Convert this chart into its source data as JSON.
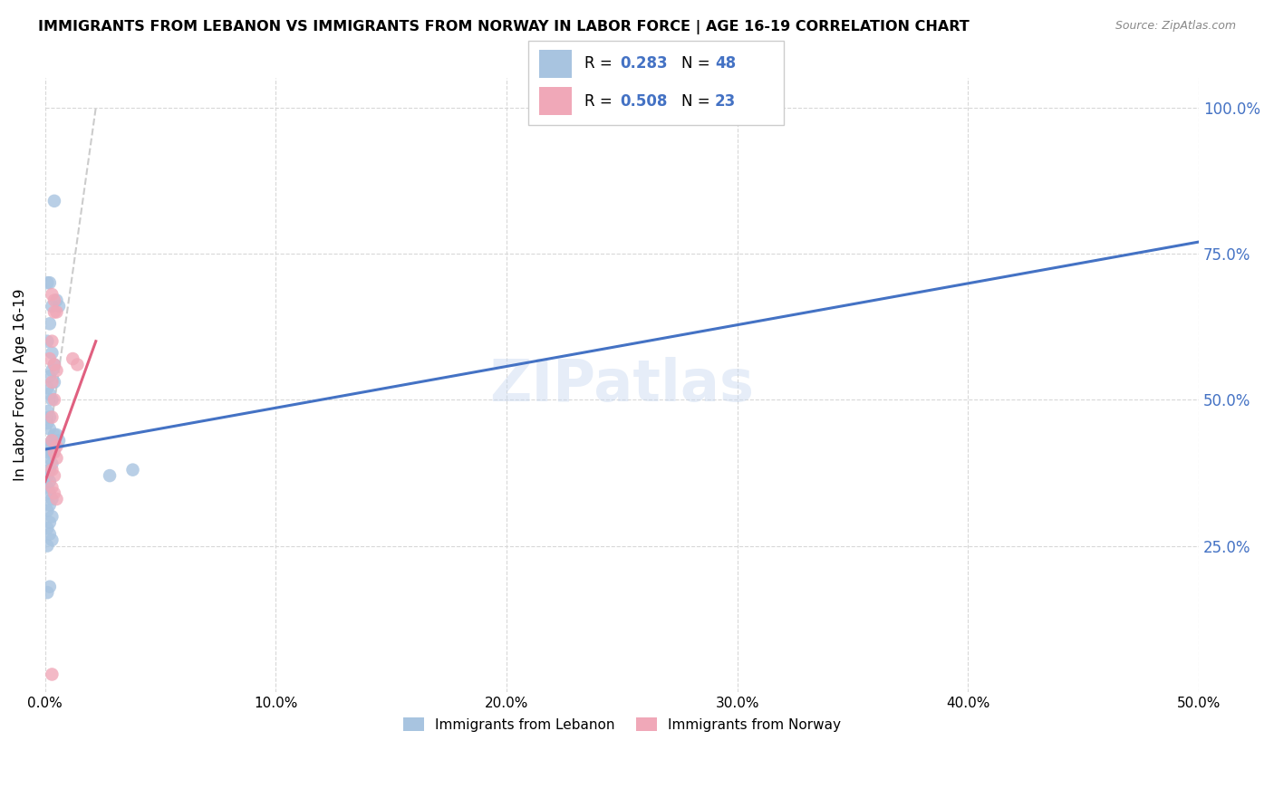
{
  "title": "IMMIGRANTS FROM LEBANON VS IMMIGRANTS FROM NORWAY IN LABOR FORCE | AGE 16-19 CORRELATION CHART",
  "source": "Source: ZipAtlas.com",
  "ylabel": "In Labor Force | Age 16-19",
  "xlim": [
    0.0,
    0.5
  ],
  "ylim": [
    0.0,
    1.05
  ],
  "xtick_vals": [
    0.0,
    0.1,
    0.2,
    0.3,
    0.4,
    0.5
  ],
  "ytick_vals": [
    0.25,
    0.5,
    0.75,
    1.0
  ],
  "legend_labels": [
    "Immigrants from Lebanon",
    "Immigrants from Norway"
  ],
  "lebanon_color": "#a8c4e0",
  "norway_color": "#f0a8b8",
  "lebanon_line_color": "#4472c4",
  "norway_line_color": "#e06080",
  "diag_line_color": "#cccccc",
  "lebanon_scatter": {
    "x": [
      0.004,
      0.002,
      0.001,
      0.005,
      0.003,
      0.006,
      0.002,
      0.001,
      0.003,
      0.004,
      0.003,
      0.002,
      0.004,
      0.001,
      0.002,
      0.003,
      0.001,
      0.002,
      0.001,
      0.002,
      0.004,
      0.005,
      0.006,
      0.003,
      0.002,
      0.001,
      0.003,
      0.001,
      0.002,
      0.003,
      0.002,
      0.001,
      0.002,
      0.001,
      0.002,
      0.003,
      0.002,
      0.001,
      0.003,
      0.002,
      0.001,
      0.002,
      0.003,
      0.001,
      0.038,
      0.028,
      0.002,
      0.001
    ],
    "y": [
      0.84,
      0.7,
      0.7,
      0.67,
      0.66,
      0.66,
      0.63,
      0.6,
      0.58,
      0.56,
      0.55,
      0.54,
      0.53,
      0.52,
      0.51,
      0.5,
      0.48,
      0.47,
      0.46,
      0.45,
      0.44,
      0.44,
      0.43,
      0.43,
      0.42,
      0.42,
      0.41,
      0.41,
      0.4,
      0.39,
      0.38,
      0.37,
      0.36,
      0.35,
      0.34,
      0.33,
      0.32,
      0.31,
      0.3,
      0.29,
      0.28,
      0.27,
      0.26,
      0.25,
      0.38,
      0.37,
      0.18,
      0.17
    ]
  },
  "norway_scatter": {
    "x": [
      0.003,
      0.004,
      0.004,
      0.005,
      0.003,
      0.002,
      0.004,
      0.005,
      0.003,
      0.004,
      0.003,
      0.003,
      0.005,
      0.004,
      0.005,
      0.003,
      0.004,
      0.003,
      0.004,
      0.005,
      0.012,
      0.014,
      0.003
    ],
    "y": [
      0.68,
      0.67,
      0.65,
      0.65,
      0.6,
      0.57,
      0.56,
      0.55,
      0.53,
      0.5,
      0.47,
      0.43,
      0.42,
      0.41,
      0.4,
      0.38,
      0.37,
      0.35,
      0.34,
      0.33,
      0.57,
      0.56,
      0.03
    ]
  },
  "lebanon_R": 0.283,
  "lebanon_N": 48,
  "norway_R": 0.508,
  "norway_N": 23,
  "lebanon_line_x": [
    0.0,
    0.5
  ],
  "lebanon_line_y": [
    0.415,
    0.77
  ],
  "norway_line_x": [
    0.0,
    0.022
  ],
  "norway_line_y": [
    0.36,
    0.6
  ],
  "diag_line_x": [
    0.001,
    0.022
  ],
  "diag_line_y": [
    0.41,
    1.0
  ],
  "watermark": "ZIPatlas",
  "background_color": "#ffffff",
  "grid_color": "#d8d8d8"
}
